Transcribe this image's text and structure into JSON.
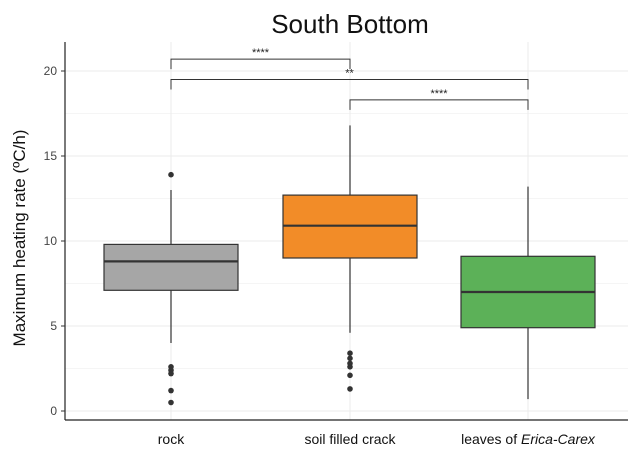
{
  "chart_data": {
    "type": "boxplot",
    "title": "South Bottom",
    "ylabel": "Maximum heating rate (ºC/h)",
    "xlabel": "",
    "ylim": [
      0,
      20
    ],
    "yticks": [
      0,
      5,
      10,
      15,
      20
    ],
    "grid": true,
    "legend": "none",
    "categories": [
      {
        "label": "rock",
        "label_prefix": "rock",
        "label_italic": "",
        "label_suffix": ""
      },
      {
        "label": "soil filled crack",
        "label_prefix": "soil filled crack",
        "label_italic": "",
        "label_suffix": ""
      },
      {
        "label": "leaves of Erica-Carex",
        "label_prefix": "leaves of ",
        "label_italic": "Erica-Carex",
        "label_suffix": ""
      }
    ],
    "boxes": [
      {
        "category": "rock",
        "whisker_low": 4.0,
        "q1": 7.1,
        "median": 8.8,
        "q3": 9.8,
        "whisker_high": 13.0,
        "outliers": [
          13.9,
          2.6,
          2.4,
          2.2,
          1.2,
          0.5
        ],
        "color": "#a6a6a6"
      },
      {
        "category": "soil filled crack",
        "whisker_low": 4.6,
        "q1": 9.0,
        "median": 10.9,
        "q3": 12.7,
        "whisker_high": 16.8,
        "outliers": [
          3.4,
          3.1,
          2.8,
          2.6,
          2.1,
          1.3
        ],
        "color": "#f28c28"
      },
      {
        "category": "leaves of Erica-Carex",
        "whisker_low": 0.7,
        "q1": 4.9,
        "median": 7.0,
        "q3": 9.1,
        "whisker_high": 13.2,
        "outliers": [],
        "color": "#5cb158"
      }
    ],
    "significance": [
      {
        "from": 0,
        "to": 1,
        "y": 20.7,
        "label": "****"
      },
      {
        "from": 0,
        "to": 2,
        "y": 19.5,
        "label": "**"
      },
      {
        "from": 1,
        "to": 2,
        "y": 18.3,
        "label": "****"
      }
    ]
  }
}
